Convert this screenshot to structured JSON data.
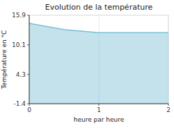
{
  "chart_data": {
    "type": "area",
    "title": "Evolution de la température",
    "x_label": "heure par heure",
    "y_label": "Température en °C",
    "x": [
      0.0,
      0.083,
      0.167,
      0.25,
      0.333,
      0.417,
      0.5,
      0.583,
      0.667,
      0.75,
      0.833,
      0.917,
      1.0,
      1.083,
      1.167,
      1.25,
      1.333,
      1.417,
      1.5,
      1.583,
      1.667,
      1.75,
      1.833,
      1.917,
      2.0
    ],
    "values": [
      14.3,
      14.1,
      13.9,
      13.7,
      13.5,
      13.3,
      13.1,
      13.0,
      12.9,
      12.8,
      12.7,
      12.6,
      12.5,
      12.5,
      12.5,
      12.5,
      12.5,
      12.5,
      12.5,
      12.5,
      12.5,
      12.5,
      12.5,
      12.5,
      12.5
    ],
    "color": "#7bbfd4",
    "xlim": [
      0,
      2
    ],
    "ylim": [
      -1.4,
      15.9
    ],
    "xticks": [
      0,
      1,
      2
    ],
    "yticks": [
      -1.4,
      4.3,
      10.1,
      15.9
    ],
    "grid": "x"
  }
}
